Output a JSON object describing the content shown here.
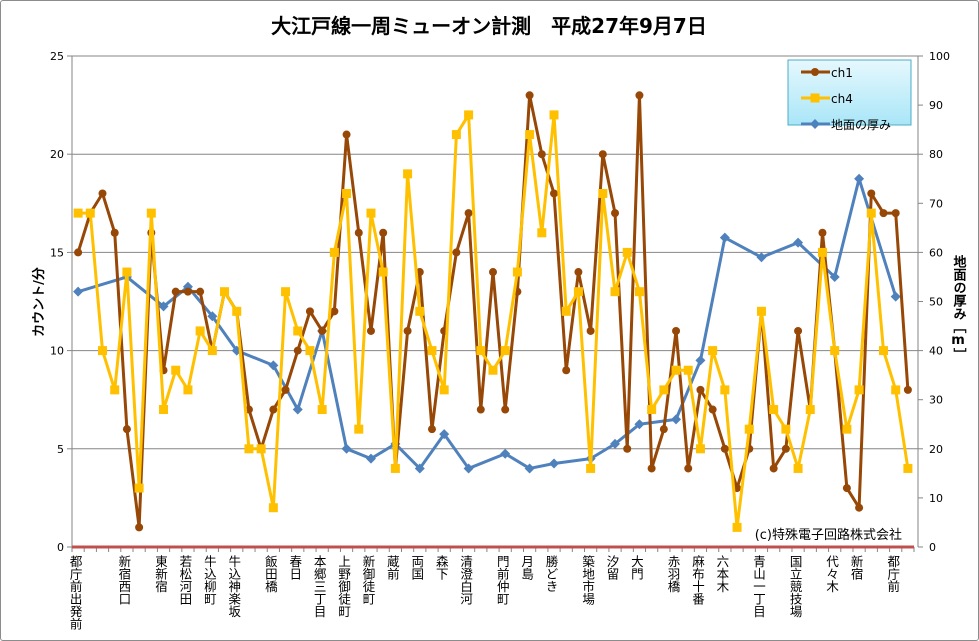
{
  "chart_data": {
    "type": "line",
    "title": "大江戸線一周ミューオン計測　平成27年9月7日",
    "ylabel": "カウント/分",
    "y2label": "地面の厚み［m］",
    "ylim": [
      0,
      25
    ],
    "yticks": [
      0,
      5,
      10,
      15,
      20,
      25
    ],
    "y2lim": [
      0,
      100
    ],
    "y2ticks": [
      0,
      10,
      20,
      30,
      40,
      50,
      60,
      70,
      80,
      90,
      100
    ],
    "grid": true,
    "legend_position": "top-right",
    "annotation": "(c)特殊電子回路株式会社",
    "categories": [
      "都庁前出発前",
      "",
      "",
      "",
      "新宿西口",
      "",
      "",
      "東新宿",
      "",
      "若松河田",
      "",
      "牛込柳町",
      "",
      "牛込神楽坂",
      "",
      "",
      "飯田橋",
      "",
      "春日",
      "",
      "本郷三丁目",
      "",
      "上野御徒町",
      "",
      "新御徒町",
      "",
      "蔵前",
      "",
      "両国",
      "",
      "森下",
      "",
      "清澄白河",
      "",
      "",
      "門前仲町",
      "",
      "月島",
      "",
      "勝どき",
      "",
      "",
      "築地市場",
      "",
      "汐留",
      "",
      "大門",
      "",
      "",
      "赤羽橋",
      "",
      "麻布十番",
      "",
      "六本木",
      "",
      "",
      "青山一丁目",
      "",
      "",
      "国立競技場",
      "",
      "",
      "代々木",
      "",
      "新宿",
      "",
      "",
      "都庁前",
      ""
    ],
    "series": [
      {
        "name": "ch1",
        "axis": "left",
        "color": "#974706",
        "marker": "circle",
        "values": [
          15,
          17,
          18,
          16,
          6,
          1,
          16,
          9,
          13,
          13,
          13,
          10,
          13,
          12,
          7,
          5,
          7,
          8,
          10,
          12,
          11,
          12,
          21,
          16,
          11,
          16,
          4,
          11,
          14,
          6,
          11,
          15,
          17,
          7,
          14,
          7,
          13,
          23,
          20,
          18,
          9,
          14,
          11,
          20,
          17,
          5,
          23,
          4,
          6,
          11,
          4,
          8,
          7,
          5,
          3,
          5,
          12,
          4,
          5,
          11,
          7,
          16,
          10,
          3,
          2,
          18,
          17,
          17,
          8
        ]
      },
      {
        "name": "ch4",
        "axis": "left",
        "color": "#FFC000",
        "marker": "square",
        "values": [
          17,
          17,
          10,
          8,
          14,
          3,
          17,
          7,
          9,
          8,
          11,
          10,
          13,
          12,
          5,
          5,
          2,
          13,
          11,
          10,
          7,
          15,
          18,
          6,
          17,
          14,
          4,
          19,
          12,
          10,
          8,
          21,
          22,
          10,
          9,
          10,
          14,
          21,
          16,
          22,
          12,
          13,
          4,
          18,
          13,
          15,
          13,
          7,
          8,
          9,
          9,
          5,
          10,
          8,
          1,
          6,
          12,
          7,
          6,
          4,
          7,
          15,
          10,
          6,
          8,
          17,
          10,
          8,
          4
        ]
      },
      {
        "name": "地面の厚み",
        "axis": "right",
        "color": "#4F81BD",
        "marker": "diamond",
        "values": [
          52,
          null,
          null,
          null,
          55,
          null,
          null,
          49,
          null,
          53,
          null,
          47,
          null,
          40,
          null,
          null,
          37,
          null,
          28,
          null,
          44,
          null,
          20,
          null,
          18,
          null,
          21,
          null,
          16,
          null,
          23,
          null,
          16,
          null,
          null,
          19,
          null,
          16,
          null,
          17,
          null,
          null,
          18,
          null,
          21,
          null,
          25,
          null,
          null,
          26,
          null,
          38,
          null,
          63,
          null,
          null,
          59,
          null,
          null,
          62,
          null,
          null,
          55,
          null,
          75,
          null,
          null,
          51,
          null
        ]
      }
    ],
    "axis_line_color": "#C0504D"
  }
}
